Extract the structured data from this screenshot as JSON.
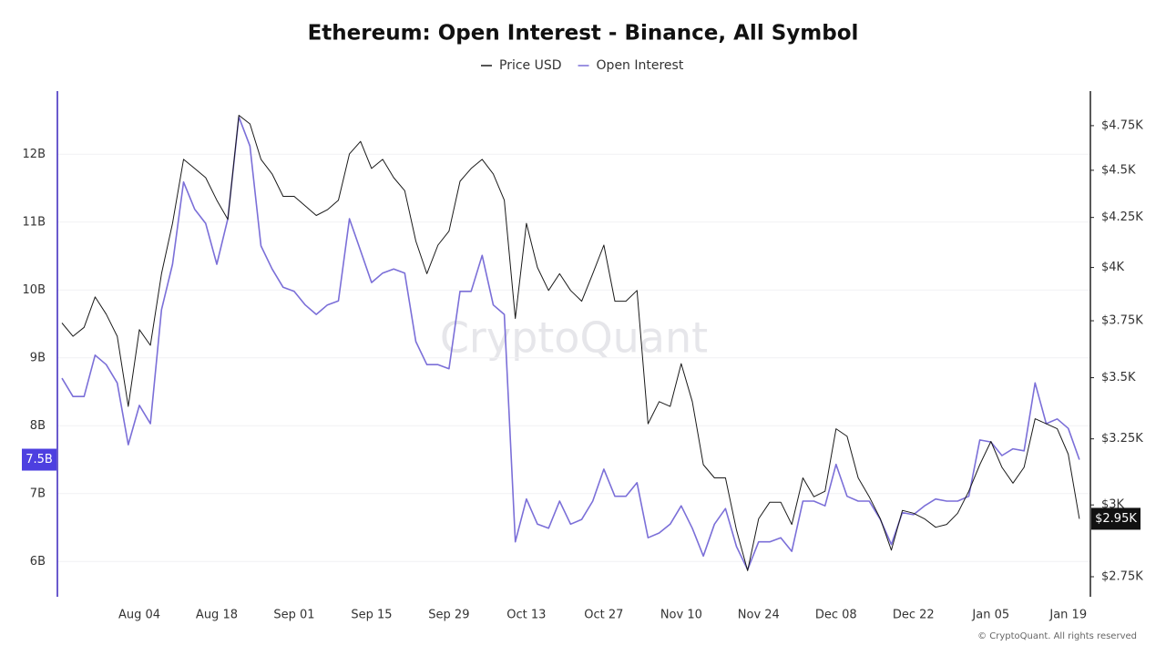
{
  "chart_data": {
    "type": "line",
    "title": "Ethereum: Open Interest - Binance, All Symbol",
    "watermark": "CryptoQuant",
    "footer": "© CryptoQuant. All rights reserved",
    "categories": [
      null,
      null,
      null,
      null,
      null,
      null,
      null,
      "Aug 04",
      null,
      null,
      null,
      null,
      null,
      null,
      "Aug 18",
      null,
      null,
      null,
      null,
      null,
      null,
      "Sep 01",
      null,
      null,
      null,
      null,
      null,
      null,
      "Sep 15",
      null,
      null,
      null,
      null,
      null,
      null,
      "Sep 29",
      null,
      null,
      null,
      null,
      null,
      null,
      "Oct 13",
      null,
      null,
      null,
      null,
      null,
      null,
      "Oct 27",
      null,
      null,
      null,
      null,
      null,
      null,
      "Nov 10",
      null,
      null,
      null,
      null,
      null,
      null,
      "Nov 24",
      null,
      null,
      null,
      null,
      null,
      null,
      "Dec 08",
      null,
      null,
      null,
      null,
      null,
      null,
      "Dec 22",
      null,
      null,
      null,
      null,
      null,
      null,
      "Jan 05",
      null,
      null,
      null,
      null,
      null,
      null,
      "Jan 19",
      null
    ],
    "series": [
      {
        "name": "Price USD",
        "color": "#1a1a1a",
        "axis": "y2",
        "values": [
          3.74,
          3.68,
          3.72,
          3.86,
          3.78,
          3.68,
          3.38,
          3.71,
          3.64,
          3.97,
          4.22,
          4.56,
          4.51,
          4.46,
          4.34,
          4.24,
          4.81,
          4.76,
          4.56,
          4.48,
          4.36,
          4.36,
          4.31,
          4.26,
          4.29,
          4.34,
          4.59,
          4.66,
          4.51,
          4.56,
          4.46,
          4.39,
          4.13,
          3.97,
          4.11,
          4.18,
          4.44,
          4.51,
          4.56,
          4.48,
          4.34,
          3.76,
          4.22,
          4.0,
          3.89,
          3.97,
          3.89,
          3.84,
          3.97,
          4.11,
          3.84,
          3.84,
          3.89,
          3.31,
          3.4,
          3.38,
          3.56,
          3.4,
          3.15,
          3.1,
          3.1,
          2.91,
          2.77,
          2.95,
          3.01,
          3.01,
          2.93,
          3.1,
          3.03,
          3.05,
          3.29,
          3.26,
          3.1,
          3.03,
          2.95,
          2.84,
          2.98,
          2.97,
          2.95,
          2.92,
          2.93,
          2.97,
          3.05,
          3.15,
          3.24,
          3.14,
          3.08,
          3.14,
          3.33,
          3.31,
          3.29,
          3.19,
          2.95
        ]
      },
      {
        "name": "Open Interest",
        "color": "#7b6fd8",
        "values": [
          8.7,
          8.43,
          8.43,
          9.04,
          8.9,
          8.63,
          7.72,
          8.3,
          8.03,
          9.71,
          10.38,
          11.59,
          11.19,
          10.98,
          10.38,
          11.05,
          12.55,
          12.12,
          10.65,
          10.31,
          10.04,
          9.98,
          9.78,
          9.64,
          9.78,
          9.84,
          11.05,
          10.58,
          10.11,
          10.25,
          10.31,
          10.25,
          9.24,
          8.9,
          8.9,
          8.84,
          9.98,
          9.98,
          10.51,
          9.78,
          9.64,
          6.29,
          6.92,
          6.55,
          6.49,
          6.89,
          6.55,
          6.62,
          6.89,
          7.36,
          6.96,
          6.96,
          7.16,
          6.35,
          6.42,
          6.55,
          6.82,
          6.49,
          6.08,
          6.55,
          6.78,
          6.22,
          5.88,
          6.29,
          6.29,
          6.35,
          6.15,
          6.89,
          6.89,
          6.82,
          7.43,
          6.96,
          6.89,
          6.89,
          6.62,
          6.25,
          6.72,
          6.69,
          6.82,
          6.92,
          6.89,
          6.89,
          6.96,
          7.79,
          7.76,
          7.56,
          7.66,
          7.63,
          8.63,
          8.03,
          8.1,
          7.96,
          7.5
        ]
      }
    ],
    "ylim": [
      5.48,
      12.93
    ],
    "yticks": [
      {
        "value": 6,
        "label": "6B"
      },
      {
        "value": 7,
        "label": "7B"
      },
      {
        "value": 8,
        "label": "8B"
      },
      {
        "value": 9,
        "label": "9B"
      },
      {
        "value": 10,
        "label": "10B"
      },
      {
        "value": 11,
        "label": "11B"
      },
      {
        "value": 12,
        "label": "12B"
      }
    ],
    "y2lim": [
      2.684,
      4.953
    ],
    "y2log": true,
    "y2ticks": [
      {
        "value": 2.75,
        "label": "$2.75K"
      },
      {
        "value": 3,
        "label": "$3K"
      },
      {
        "value": 3.25,
        "label": "$3.25K"
      },
      {
        "value": 3.5,
        "label": "$3.5K"
      },
      {
        "value": 3.75,
        "label": "$3.75K"
      },
      {
        "value": 4,
        "label": "$4K"
      },
      {
        "value": 4.25,
        "label": "$4.25K"
      },
      {
        "value": 4.5,
        "label": "$4.5K"
      },
      {
        "value": 4.75,
        "label": "$4.75K"
      }
    ],
    "y_current": {
      "value": 7.5,
      "label": "7.5B"
    },
    "y2_current": {
      "value": 2.95,
      "label": "$2.95K"
    },
    "grid": true,
    "legend": "top"
  }
}
